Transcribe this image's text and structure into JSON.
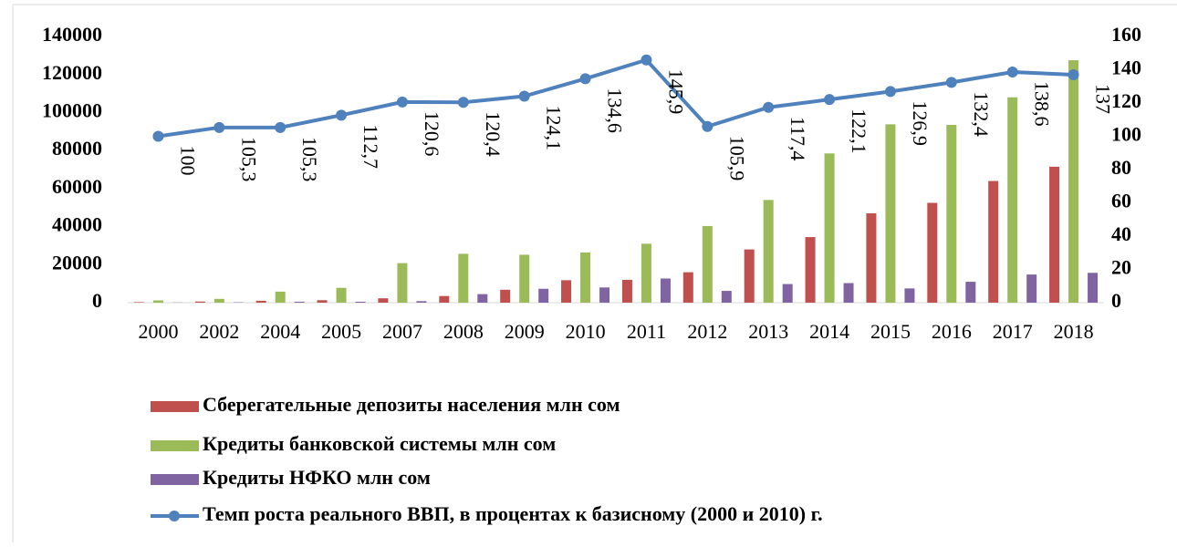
{
  "chart_data": {
    "type": "bar",
    "categories": [
      "2000",
      "2002",
      "2004",
      "2005",
      "2007",
      "2008",
      "2009",
      "2010",
      "2011",
      "2012",
      "2013",
      "2014",
      "2015",
      "2016",
      "2017",
      "2018"
    ],
    "series": [
      {
        "name": "Сберегательные депозиты населения млн сом",
        "color": "#c0504d",
        "values": [
          300,
          600,
          1000,
          1300,
          2300,
          3500,
          6800,
          11800,
          12000,
          16000,
          28000,
          34500,
          47000,
          52500,
          64000,
          71500
        ]
      },
      {
        "name": "Кредиты банковской системы  млн сом",
        "color": "#9bbb59",
        "values": [
          1200,
          2000,
          5800,
          7800,
          20800,
          25700,
          25200,
          26400,
          31000,
          40300,
          54000,
          78500,
          93800,
          93500,
          108000,
          127500
        ]
      },
      {
        "name": "Кредиты НФКО млн сом",
        "color": "#8064a2",
        "values": [
          100,
          200,
          500,
          500,
          800,
          4500,
          7300,
          8000,
          12700,
          6200,
          9800,
          10300,
          7500,
          11000,
          14800,
          15700
        ]
      },
      {
        "name": "Темп роста реального ВВП, в процентах к  базисному (2000 и 2010) г.",
        "color": "#4f81bd",
        "type": "line",
        "axis": "y2",
        "values": [
          100,
          105.3,
          105.3,
          112.7,
          120.6,
          120.4,
          124.1,
          134.6,
          145.9,
          105.9,
          117.4,
          122.1,
          126.9,
          132.4,
          138.6,
          137
        ],
        "value_labels": [
          "100",
          "105,3",
          "105,3",
          "112,7",
          "120,6",
          "120,4",
          "124,1",
          "134,6",
          "145,9",
          "105,9",
          "117,4",
          "122,1",
          "126,9",
          "132,4",
          "138,6",
          "137"
        ]
      }
    ],
    "ylim": [
      0,
      140000
    ],
    "yticks": [
      0,
      20000,
      40000,
      60000,
      80000,
      100000,
      120000,
      140000
    ],
    "y2lim": [
      0,
      160
    ],
    "y2ticks": [
      0,
      20,
      40,
      60,
      80,
      100,
      120,
      140,
      160
    ],
    "legend": "bottom"
  }
}
